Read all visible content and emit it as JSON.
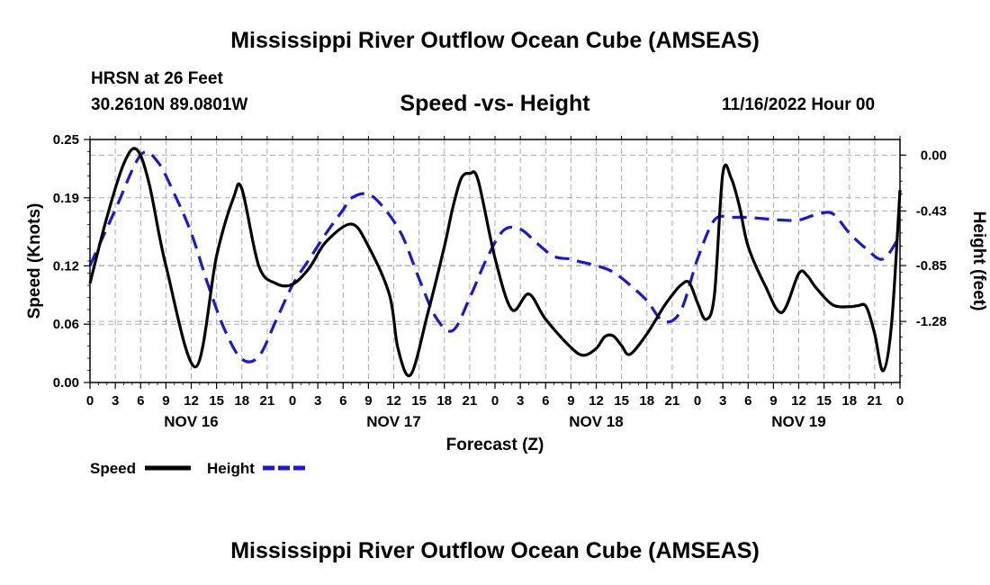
{
  "titles": {
    "main": "Mississippi River Outflow Ocean Cube (AMSEAS)",
    "bottom": "Mississippi River Outflow Ocean Cube (AMSEAS)",
    "station": "HRSN at 26 Feet",
    "coords": "30.2610N  89.0801W",
    "subtitle": "Speed -vs- Height",
    "datetime": "11/16/2022 Hour 00"
  },
  "colors": {
    "speed": "#000000",
    "height": "#1a1ac8",
    "grid": "#aaaaaa"
  },
  "chart_data": {
    "type": "line",
    "title": "Speed -vs- Height",
    "xlabel": "Forecast (Z)",
    "ylabel": "Speed (Knots)",
    "y2label": "Height (feet)",
    "xlim": [
      0,
      96
    ],
    "ylim": [
      0,
      0.25
    ],
    "y2lim": [
      -1.75,
      0.12
    ],
    "grid": true,
    "x_tick_labels": [
      "0",
      "3",
      "6",
      "9",
      "12",
      "15",
      "18",
      "21",
      "0",
      "3",
      "6",
      "9",
      "12",
      "15",
      "18",
      "21",
      "0",
      "3",
      "6",
      "9",
      "12",
      "15",
      "18",
      "21",
      "0",
      "3",
      "6",
      "9",
      "12",
      "15",
      "18",
      "21",
      "0"
    ],
    "day_labels": [
      {
        "label": "NOV 16",
        "x": 12
      },
      {
        "label": "NOV 17",
        "x": 36
      },
      {
        "label": "NOV 18",
        "x": 60
      },
      {
        "label": "NOV 19",
        "x": 84
      }
    ],
    "y_ticks": [
      0.0,
      0.06,
      0.12,
      0.19,
      0.25
    ],
    "y_tick_labels": [
      "0.00",
      "0.06",
      "0.12",
      "0.19",
      "0.25"
    ],
    "y2_ticks": [
      0.0,
      -0.43,
      -0.85,
      -1.28
    ],
    "y2_tick_labels": [
      "0.00",
      "-0.43",
      "-0.85",
      "-1.28"
    ],
    "legend": [
      {
        "label": "Speed",
        "series": "speed"
      },
      {
        "label": "Height",
        "series": "height"
      }
    ],
    "series": [
      {
        "name": "Speed",
        "key": "speed",
        "axis": "left",
        "style": "solid",
        "x": [
          0,
          2,
          4,
          5.5,
          7,
          9,
          12.5,
          15,
          17,
          18,
          20,
          22,
          24,
          26,
          28,
          31,
          33,
          35.5,
          36.5,
          38,
          40,
          42,
          43,
          44,
          45,
          46,
          48,
          50,
          52,
          54,
          57,
          58.5,
          60,
          61,
          62,
          63,
          64,
          66,
          68,
          69,
          70,
          71,
          72,
          73,
          74,
          75,
          76,
          77,
          78,
          80,
          82,
          84,
          85,
          86,
          88,
          90,
          91,
          92,
          93,
          94,
          95,
          96
        ],
        "y": [
          0.102,
          0.17,
          0.225,
          0.24,
          0.205,
          0.12,
          0.016,
          0.13,
          0.19,
          0.199,
          0.12,
          0.102,
          0.101,
          0.118,
          0.145,
          0.163,
          0.14,
          0.09,
          0.035,
          0.008,
          0.07,
          0.14,
          0.18,
          0.21,
          0.215,
          0.208,
          0.128,
          0.075,
          0.091,
          0.065,
          0.036,
          0.028,
          0.035,
          0.047,
          0.048,
          0.038,
          0.029,
          0.05,
          0.078,
          0.09,
          0.1,
          0.103,
          0.082,
          0.065,
          0.09,
          0.215,
          0.21,
          0.18,
          0.14,
          0.1,
          0.072,
          0.112,
          0.11,
          0.098,
          0.08,
          0.078,
          0.079,
          0.078,
          0.05,
          0.012,
          0.06,
          0.198
        ]
      },
      {
        "name": "Height",
        "key": "height",
        "axis": "right",
        "style": "dashed",
        "x": [
          0,
          3,
          6,
          8,
          10,
          12,
          14,
          16,
          18,
          20,
          22,
          24,
          26,
          28,
          30,
          31,
          33,
          35,
          37,
          39,
          41,
          43,
          45,
          47,
          49,
          51,
          53,
          55,
          57,
          58,
          60,
          62,
          64,
          66,
          68,
          70,
          72,
          74,
          76,
          78,
          80,
          82,
          84,
          86,
          88,
          90,
          92,
          94,
          96
        ],
        "y": [
          -0.85,
          -0.42,
          0.0,
          -0.05,
          -0.3,
          -0.6,
          -1.0,
          -1.35,
          -1.57,
          -1.55,
          -1.28,
          -1.0,
          -0.8,
          -0.6,
          -0.42,
          -0.33,
          -0.3,
          -0.42,
          -0.62,
          -0.95,
          -1.25,
          -1.35,
          -1.1,
          -0.8,
          -0.58,
          -0.57,
          -0.68,
          -0.78,
          -0.8,
          -0.82,
          -0.85,
          -0.9,
          -1.0,
          -1.12,
          -1.28,
          -1.2,
          -0.8,
          -0.5,
          -0.48,
          -0.48,
          -0.49,
          -0.5,
          -0.5,
          -0.46,
          -0.45,
          -0.6,
          -0.72,
          -0.8,
          -0.62
        ]
      }
    ]
  }
}
